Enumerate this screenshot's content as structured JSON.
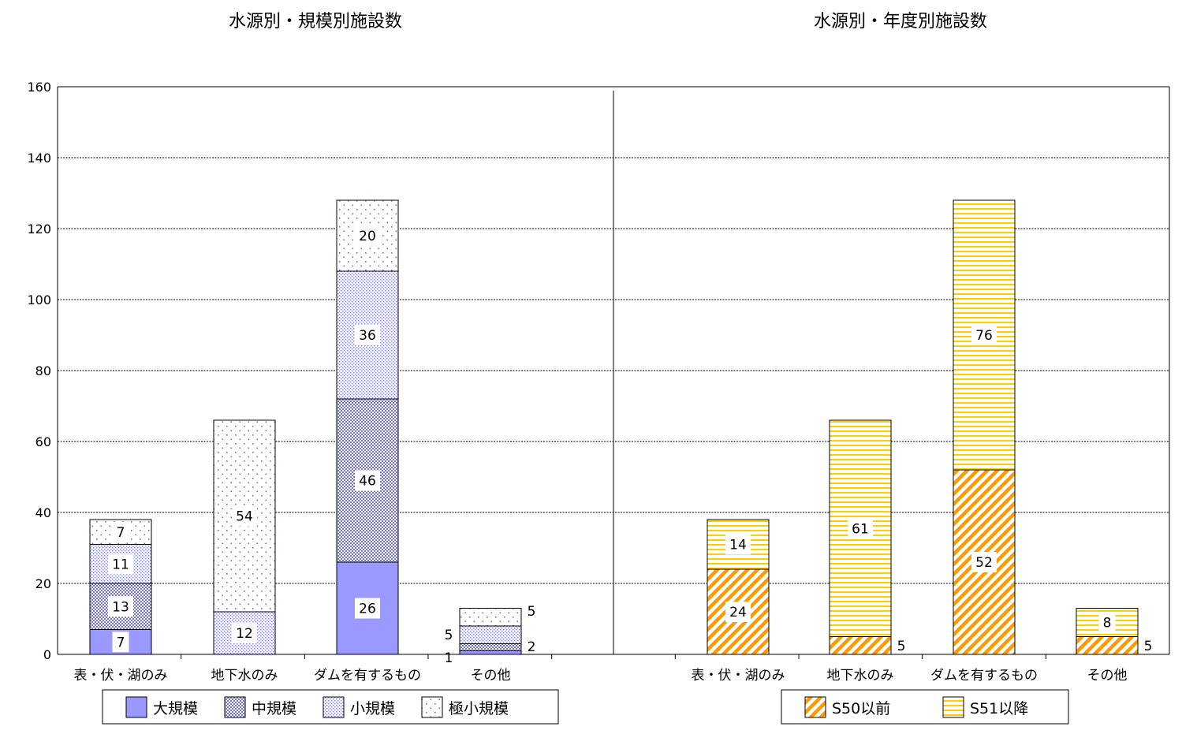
{
  "chart_data": [
    {
      "type": "bar",
      "stacked": true,
      "title": "水源別・規模別施設数",
      "categories": [
        "表・伏・湖のみ",
        "地下水のみ",
        "ダムを有するもの",
        "その他"
      ],
      "series": [
        {
          "name": "大規模",
          "values": [
            7,
            0,
            26,
            1
          ],
          "color": "#9999ff",
          "pattern": "solid"
        },
        {
          "name": "中規模",
          "values": [
            13,
            0,
            46,
            2
          ],
          "color": "#9999ff",
          "pattern": "dense-dots"
        },
        {
          "name": "小規模",
          "values": [
            11,
            12,
            36,
            5
          ],
          "color": "#9999ff",
          "pattern": "dots"
        },
        {
          "name": "極小規模",
          "values": [
            7,
            54,
            20,
            5
          ],
          "color": "#9999ff",
          "pattern": "sparse-dots"
        }
      ],
      "ylim": [
        0,
        160
      ],
      "yticks": [
        0,
        20,
        40,
        60,
        80,
        100,
        120,
        140,
        160
      ],
      "grid": true,
      "legend": "bottom"
    },
    {
      "type": "bar",
      "stacked": true,
      "title": "水源別・年度別施設数",
      "categories": [
        "表・伏・湖のみ",
        "地下水のみ",
        "ダムを有するもの",
        "その他"
      ],
      "series": [
        {
          "name": "S50以前",
          "values": [
            24,
            5,
            52,
            5
          ],
          "color": "#ff9900",
          "pattern": "diagonal"
        },
        {
          "name": "S51以降",
          "values": [
            14,
            61,
            76,
            8
          ],
          "color": "#ffcc00",
          "pattern": "horizontal"
        }
      ],
      "ylim": [
        0,
        160
      ],
      "yticks": [
        0,
        20,
        40,
        60,
        80,
        100,
        120,
        140,
        160
      ],
      "grid": true,
      "legend": "bottom"
    }
  ]
}
